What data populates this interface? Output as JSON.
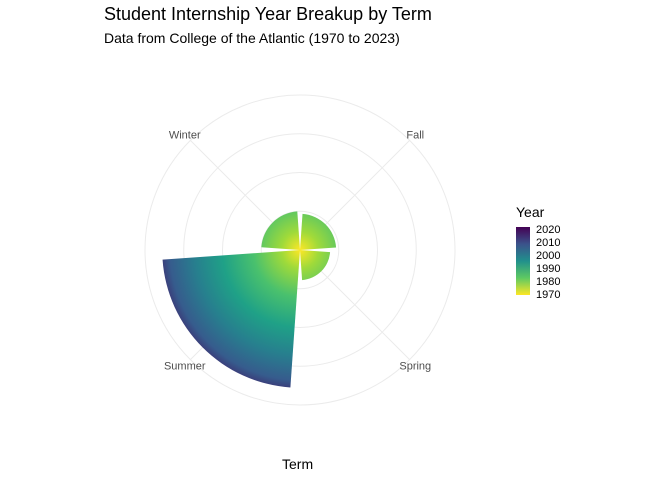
{
  "title": "Student Internship Year Breakup by Term",
  "subtitle": "Data from College of the Atlantic (1970 to 2023)",
  "chart_data": {
    "type": "bar",
    "coord": "polar",
    "title": "Student Internship Year Breakup by Term",
    "subtitle": "Data from College of the Atlantic (1970 to 2023)",
    "xlabel": "Term",
    "ylabel": "",
    "categories": [
      "Fall",
      "Spring",
      "Summer",
      "Winter"
    ],
    "values": [
      42,
      35,
      160,
      45
    ],
    "rmax": 180,
    "grid_rings": [
      45,
      90,
      135,
      180
    ],
    "grid": true,
    "fill_variable": "Year",
    "legend": {
      "title": "Year",
      "labels": [
        "2020",
        "2010",
        "2000",
        "1990",
        "1980",
        "1970"
      ],
      "placement": "right"
    },
    "colors": {
      "year_high": "#440154",
      "year_low": "#fde725",
      "grid": "#ebebeb",
      "axis_text": "#4d4d4d"
    }
  }
}
